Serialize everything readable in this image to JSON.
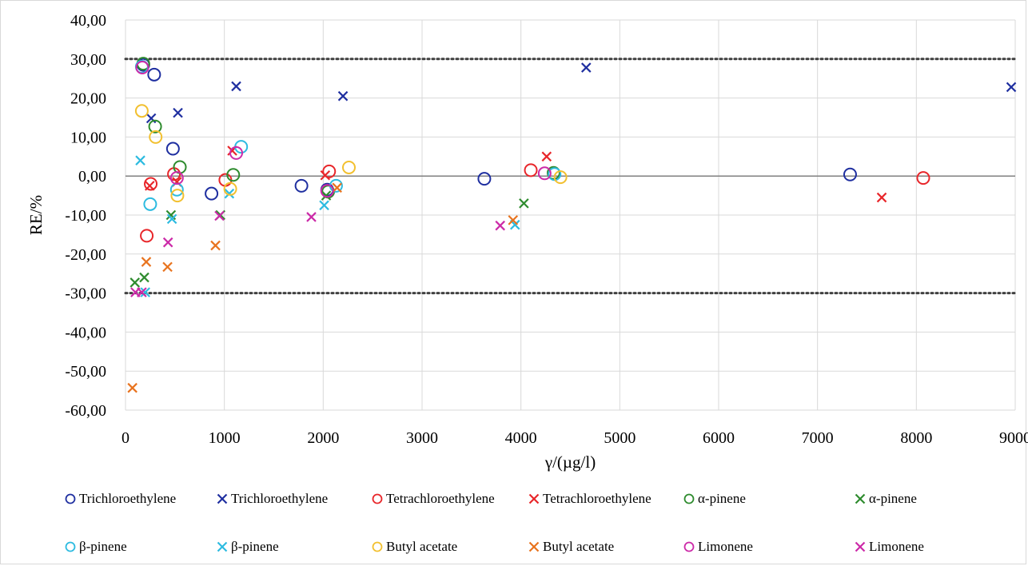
{
  "chart_data": {
    "type": "scatter",
    "title": "",
    "xlabel": "γ/(µg/l)",
    "ylabel": "RE/%",
    "xlim": [
      0,
      9000
    ],
    "ylim": [
      -60,
      40
    ],
    "x_ticks": [
      0,
      1000,
      2000,
      3000,
      4000,
      5000,
      6000,
      7000,
      8000,
      9000
    ],
    "x_tick_labels": [
      "0",
      "1000",
      "2000",
      "3000",
      "4000",
      "5000",
      "6000",
      "7000",
      "8000",
      "9000"
    ],
    "y_ticks": [
      40,
      30,
      20,
      10,
      0,
      -10,
      -20,
      -30,
      -40,
      -50,
      -60
    ],
    "y_tick_labels": [
      "40,00",
      "30,00",
      "20,00",
      "10,00",
      "0,00",
      "-10,00",
      "-20,00",
      "-30,00",
      "-40,00",
      "-50,00",
      "-60,00"
    ],
    "grid": true,
    "reference_lines": [
      {
        "y": 30,
        "style": "dotted"
      },
      {
        "y": -30,
        "style": "dotted"
      },
      {
        "y": 0,
        "style": "solid"
      }
    ],
    "legend_position": "bottom",
    "series": [
      {
        "name": "Trichloroethylene",
        "marker": "circle",
        "color": "#1f2fa0",
        "points": [
          [
            180,
            28.5
          ],
          [
            290,
            26
          ],
          [
            480,
            7
          ],
          [
            870,
            -4.5
          ],
          [
            1780,
            -2.5
          ],
          [
            2040,
            -3.5
          ],
          [
            3630,
            -0.7
          ],
          [
            7330,
            0.4
          ]
        ]
      },
      {
        "name": "Trichloroethylene",
        "marker": "x",
        "color": "#1f2fa0",
        "points": [
          [
            260,
            14.8
          ],
          [
            530,
            16.2
          ],
          [
            1120,
            23
          ],
          [
            2200,
            20.5
          ],
          [
            4660,
            27.8
          ],
          [
            8960,
            22.8
          ]
        ]
      },
      {
        "name": "Tetrachloroethylene",
        "marker": "circle",
        "color": "#e8262a",
        "points": [
          [
            215,
            -15.3
          ],
          [
            255,
            -2
          ],
          [
            490,
            0.5
          ],
          [
            1010,
            -1
          ],
          [
            2060,
            1.2
          ],
          [
            4100,
            1.5
          ],
          [
            8070,
            -0.5
          ]
        ]
      },
      {
        "name": "Tetrachloroethylene",
        "marker": "x",
        "color": "#e8262a",
        "points": [
          [
            245,
            -2.5
          ],
          [
            520,
            -1.5
          ],
          [
            1080,
            6.5
          ],
          [
            2020,
            0.2
          ],
          [
            4260,
            5
          ],
          [
            7650,
            -5.5
          ]
        ]
      },
      {
        "name": "α-pinene",
        "marker": "circle",
        "color": "#2e8b2e",
        "points": [
          [
            180,
            28.8
          ],
          [
            300,
            12.7
          ],
          [
            550,
            2.3
          ],
          [
            1090,
            0.3
          ],
          [
            2050,
            -4
          ],
          [
            4330,
            0.8
          ]
        ]
      },
      {
        "name": "α-pinene",
        "marker": "x",
        "color": "#2e8b2e",
        "points": [
          [
            95,
            -27.3
          ],
          [
            190,
            -26
          ],
          [
            460,
            -10
          ],
          [
            960,
            -10
          ],
          [
            2030,
            -5
          ],
          [
            4030,
            -7
          ]
        ]
      },
      {
        "name": "β-pinene",
        "marker": "circle",
        "color": "#2dbbe0",
        "points": [
          [
            165,
            28
          ],
          [
            250,
            -7.2
          ],
          [
            520,
            -3.5
          ],
          [
            1170,
            7.5
          ],
          [
            2130,
            -2.5
          ],
          [
            4340,
            0.5
          ]
        ]
      },
      {
        "name": "β-pinene",
        "marker": "x",
        "color": "#2dbbe0",
        "points": [
          [
            150,
            4
          ],
          [
            200,
            -29.8
          ],
          [
            470,
            -11
          ],
          [
            1050,
            -4.5
          ],
          [
            2010,
            -7.5
          ],
          [
            3940,
            -12.5
          ]
        ]
      },
      {
        "name": "Butyl acetate",
        "marker": "circle",
        "color": "#f2c030",
        "points": [
          [
            165,
            16.7
          ],
          [
            305,
            10
          ],
          [
            525,
            -5
          ],
          [
            1060,
            -3.3
          ],
          [
            2260,
            2.2
          ],
          [
            4400,
            -0.3
          ]
        ]
      },
      {
        "name": "Butyl acetate",
        "marker": "x",
        "color": "#e8731e",
        "points": [
          [
            70,
            -54.3
          ],
          [
            210,
            -22
          ],
          [
            425,
            -23.3
          ],
          [
            910,
            -17.8
          ],
          [
            2140,
            -3
          ],
          [
            3920,
            -11.3
          ]
        ]
      },
      {
        "name": "Limonene",
        "marker": "circle",
        "color": "#cc2aa8",
        "points": [
          [
            170,
            27.8
          ],
          [
            520,
            -0.5
          ],
          [
            1120,
            5.9
          ],
          [
            2040,
            -3.8
          ],
          [
            4240,
            0.7
          ]
        ]
      },
      {
        "name": "Limonene",
        "marker": "x",
        "color": "#cc2aa8",
        "points": [
          [
            100,
            -29.8
          ],
          [
            165,
            -29.8
          ],
          [
            430,
            -17
          ],
          [
            950,
            -10.2
          ],
          [
            1880,
            -10.5
          ],
          [
            3790,
            -12.7
          ]
        ]
      }
    ]
  }
}
